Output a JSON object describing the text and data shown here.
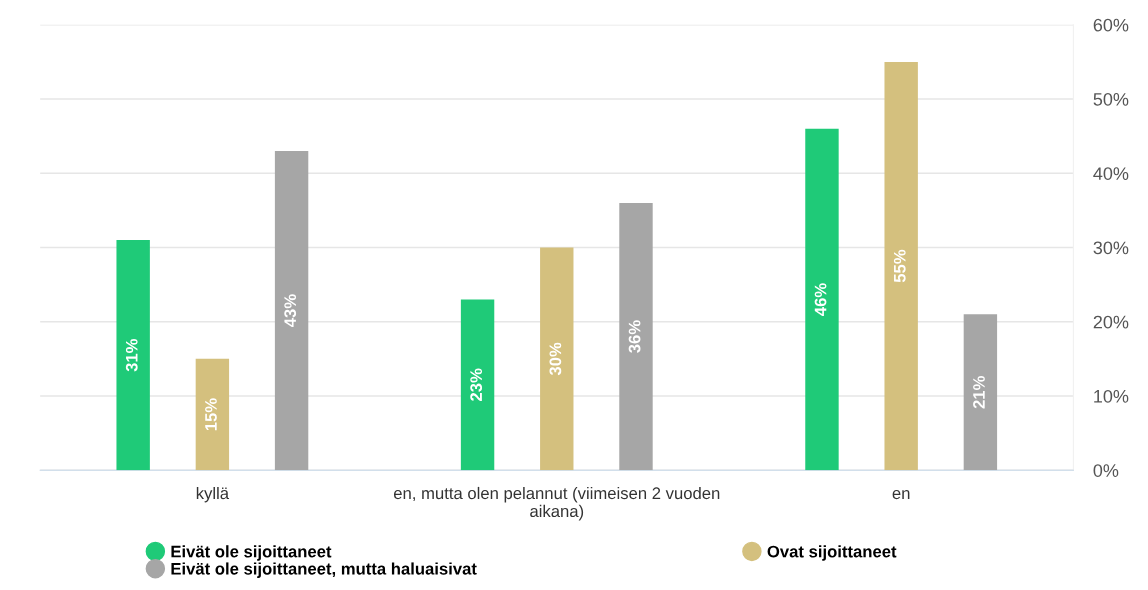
{
  "chart_data": {
    "type": "bar",
    "categories": [
      "kyllä",
      "en, mutta olen pelannut (viimeisen 2 vuoden aikana)",
      "en"
    ],
    "series": [
      {
        "name": "Eivät ole sijoittaneet",
        "color": "#1fca78",
        "values": [
          31,
          23,
          46
        ],
        "value_labels": [
          "31%",
          "23%",
          "46%"
        ]
      },
      {
        "name": "Ovat sijoittaneet",
        "color": "#d4c07e",
        "values": [
          15,
          30,
          55
        ],
        "value_labels": [
          "15%",
          "30%",
          "55%"
        ]
      },
      {
        "name": "Eivät ole sijoittaneet, mutta haluaisivat",
        "color": "#a6a6a6",
        "values": [
          43,
          36,
          21
        ],
        "value_labels": [
          "43%",
          "36%",
          "21%"
        ]
      }
    ],
    "ylim": [
      0,
      60
    ],
    "yticks": [
      {
        "value": 0,
        "label": "0%"
      },
      {
        "value": 10,
        "label": "10%"
      },
      {
        "value": 20,
        "label": "20%"
      },
      {
        "value": 30,
        "label": "30%"
      },
      {
        "value": 40,
        "label": "40%"
      },
      {
        "value": 50,
        "label": "50%"
      },
      {
        "value": 60,
        "label": "60%"
      }
    ],
    "grid": "y",
    "legend": "bottom",
    "marker": "circle"
  }
}
